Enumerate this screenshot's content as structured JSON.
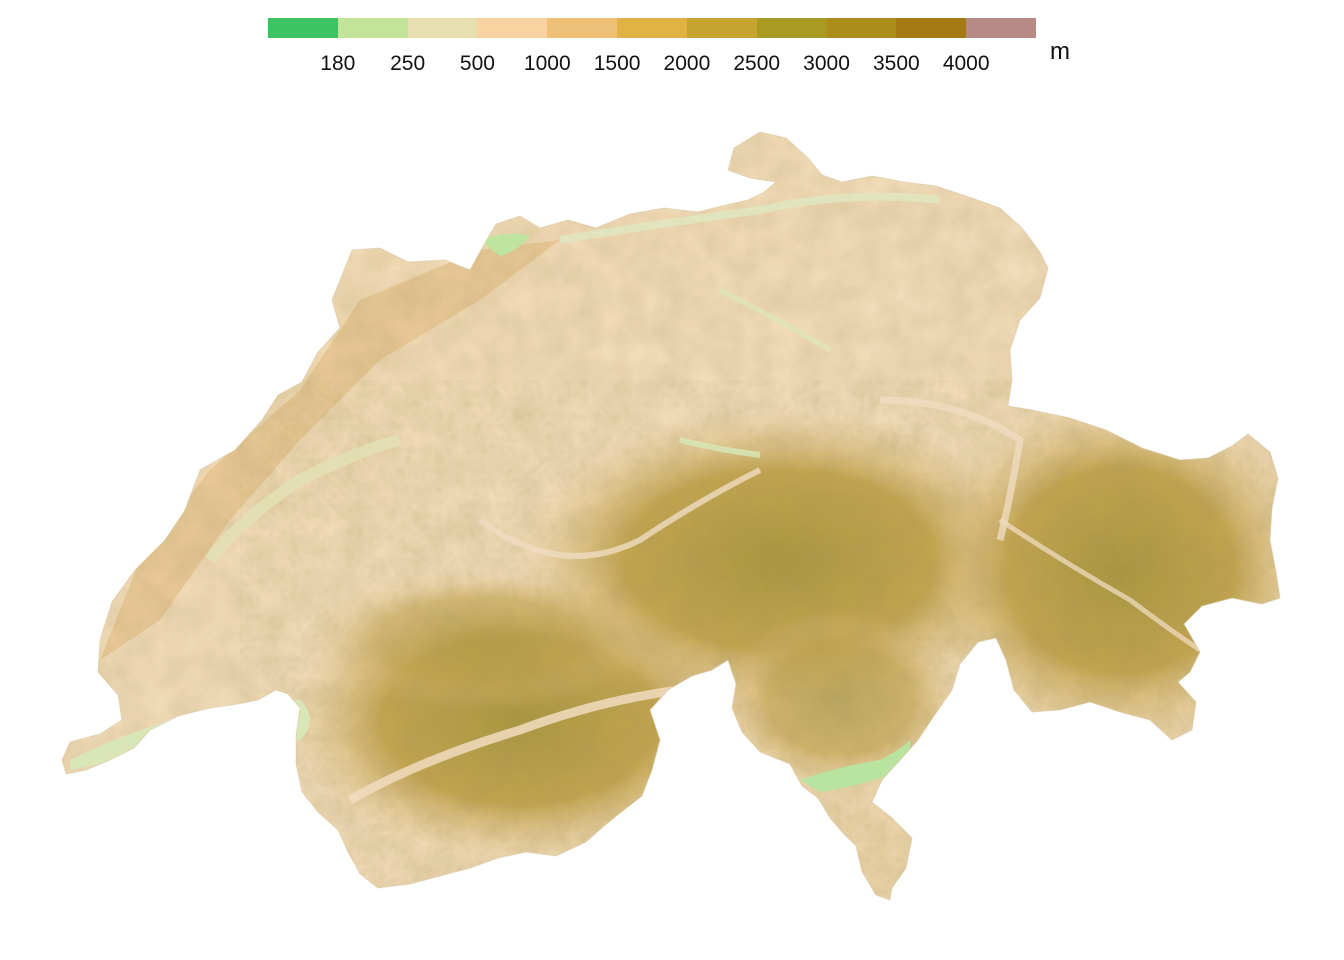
{
  "legend": {
    "unit": "m",
    "colors": [
      "#3cc463",
      "#c2e59a",
      "#e6e0b0",
      "#f9d4a2",
      "#eec078",
      "#e0b344",
      "#c7a32f",
      "#a99a23",
      "#ac8c1a",
      "#a67a12",
      "#b88a86"
    ],
    "ticks": [
      "180",
      "250",
      "500",
      "1000",
      "1500",
      "2000",
      "2500",
      "3000",
      "3500",
      "4000"
    ]
  },
  "map": {
    "region": "switzerland-shaded-relief",
    "colors": {
      "lowland": "#f2dcba",
      "jura": "#e6c58e",
      "alps_low": "#cfae5e",
      "alps_high": "#a9963f",
      "lakes_valleys": "#c9e6a8",
      "border_rivers": "#dfe6c0"
    }
  }
}
